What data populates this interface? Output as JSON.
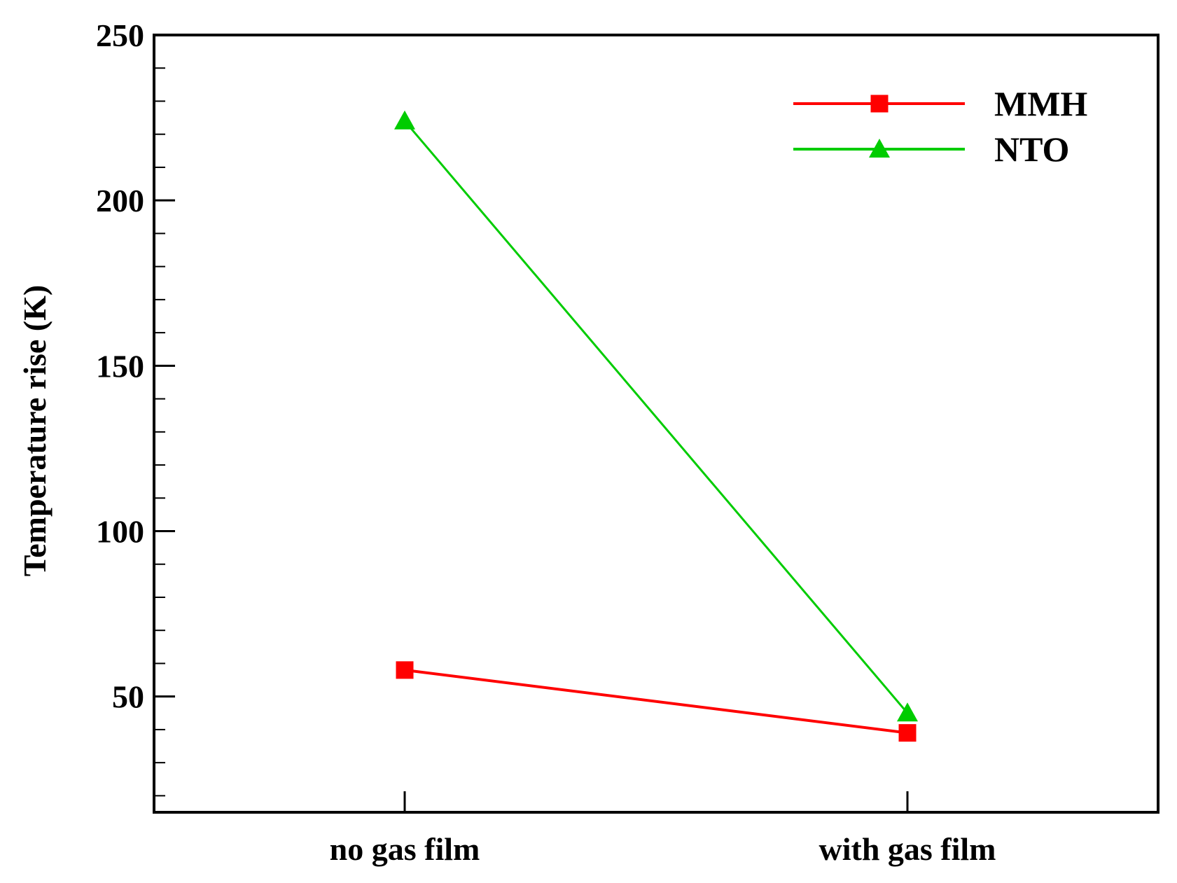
{
  "chart_data": {
    "type": "line",
    "title": "",
    "xlabel": "",
    "ylabel": "Temperature rise (K)",
    "categories": [
      "no gas film",
      "with gas film"
    ],
    "ylim": [
      15,
      250
    ],
    "yticks": [
      50,
      100,
      150,
      200,
      250
    ],
    "yminor_step": 10,
    "grid": false,
    "legend_position": "top-right",
    "series": [
      {
        "name": "MMH",
        "values": [
          58,
          39
        ],
        "color": "#ff0000",
        "marker": "square"
      },
      {
        "name": "NTO",
        "values": [
          224,
          45
        ],
        "color": "#00cc00",
        "marker": "triangle"
      }
    ]
  }
}
